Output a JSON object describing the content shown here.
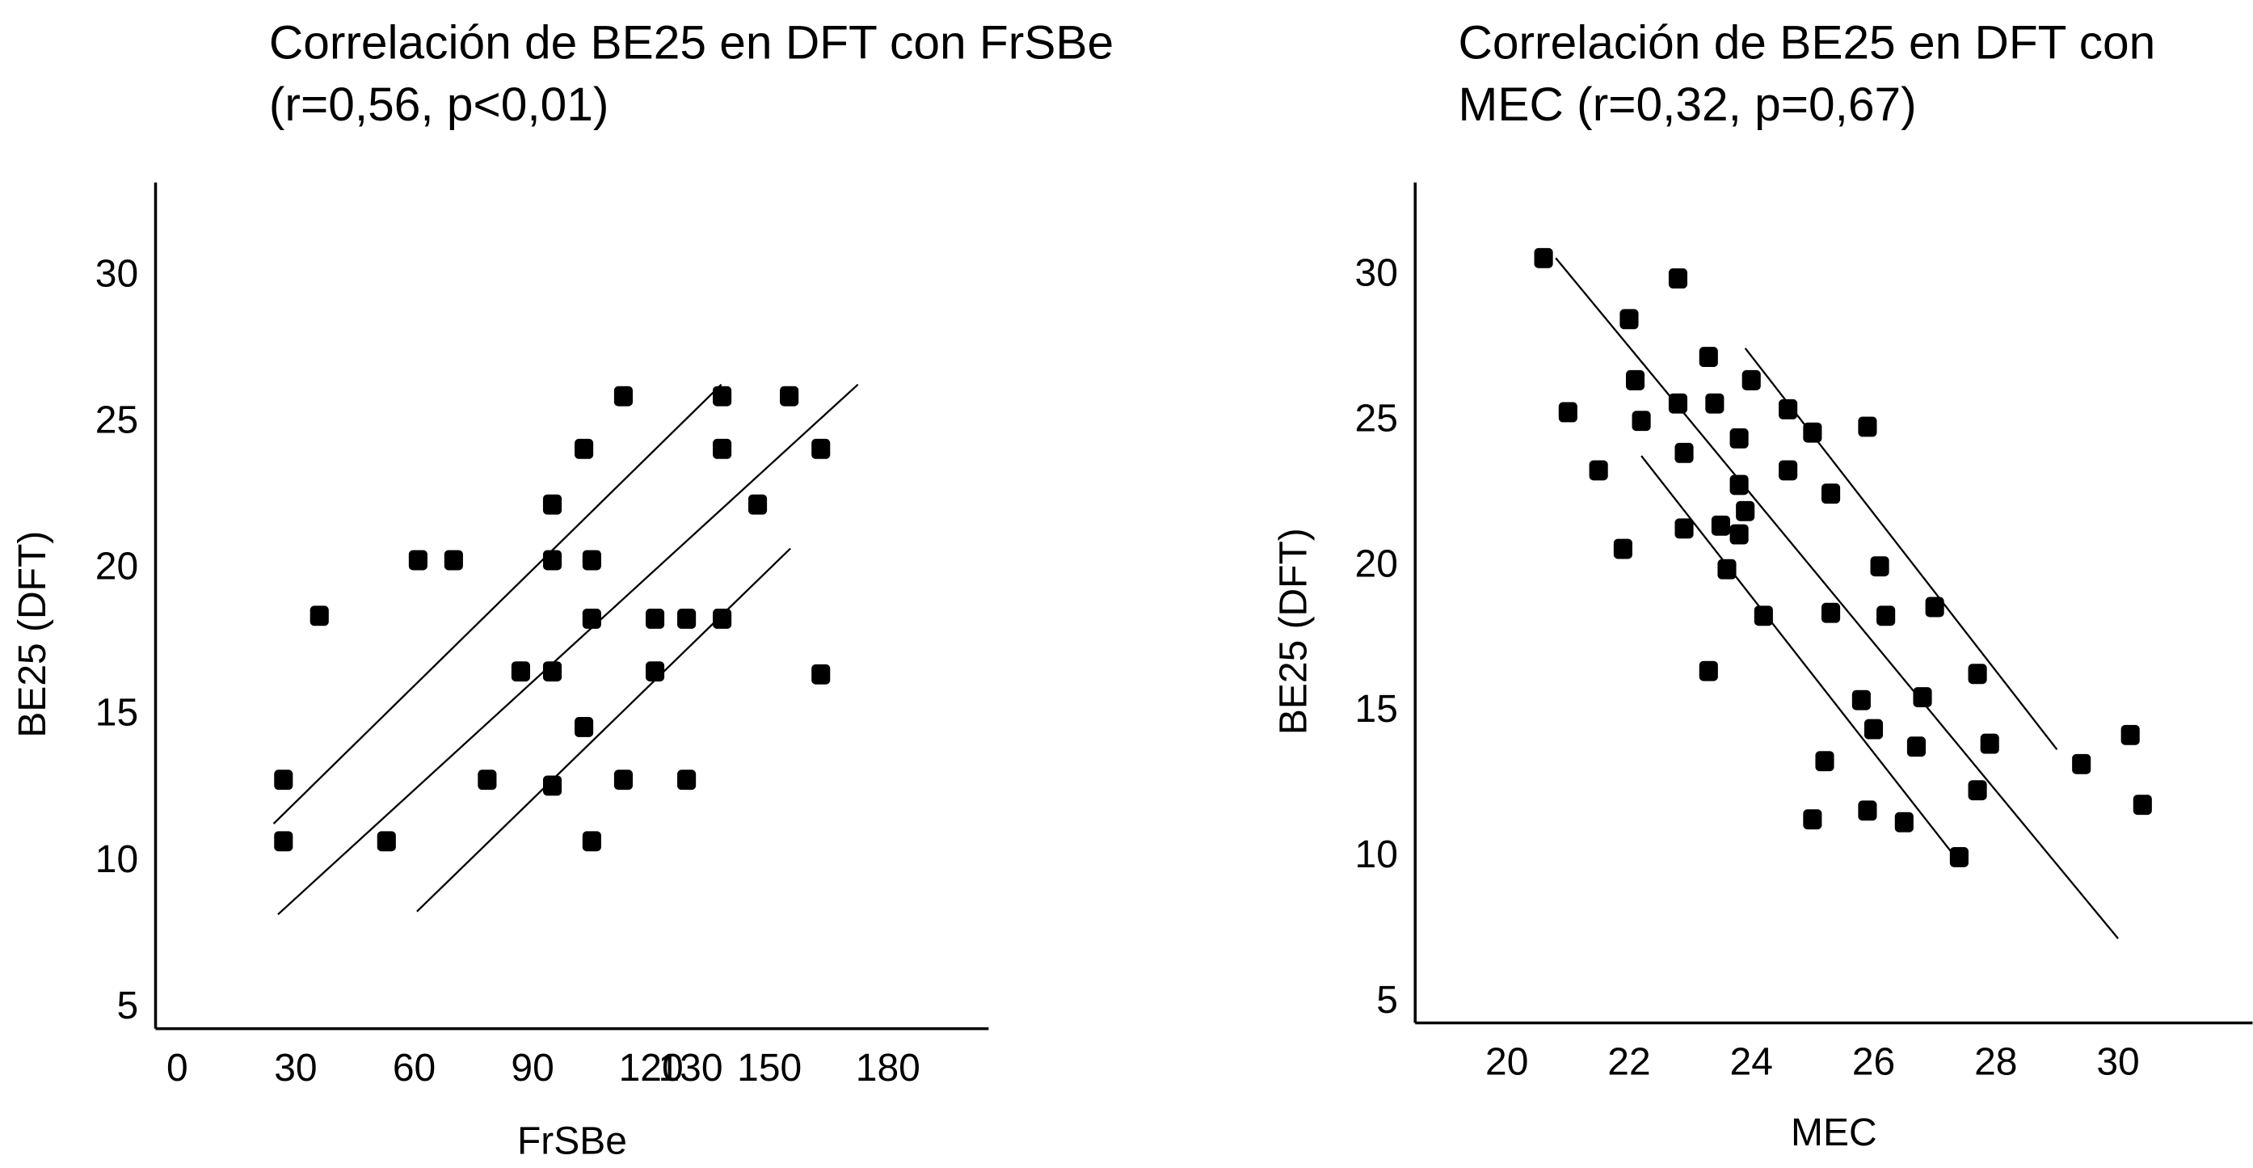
{
  "chart_data": [
    {
      "type": "scatter",
      "title": [
        "Correlación de BE25 en DFT con FrSBe",
        "(r=0,56, p<0,01)"
      ],
      "x_label": "FrSBe",
      "y_label": "BE25 (DFT)",
      "color": "#000000",
      "x": [
        26.9,
        26.9,
        36,
        53,
        61,
        70,
        78.5,
        87,
        95,
        95,
        95,
        95,
        103,
        103,
        105,
        105,
        105,
        113,
        113,
        121,
        121,
        129,
        129,
        138,
        138,
        138,
        147,
        155,
        163,
        163
      ],
      "values": [
        12.8,
        10.7,
        18.4,
        10.7,
        20.3,
        20.3,
        12.8,
        16.5,
        16.5,
        12.6,
        22.2,
        20.3,
        24.1,
        14.6,
        20.3,
        18.3,
        10.7,
        25.9,
        12.8,
        18.3,
        16.5,
        18.3,
        12.8,
        25.9,
        24.1,
        18.3,
        22.2,
        25.9,
        24.1,
        16.4
      ],
      "fit_lines": [
        {
          "x": [
            25.5,
            172.4
          ],
          "y": [
            8.2,
            26.3
          ]
        },
        {
          "x": [
            24.4,
            137.8
          ],
          "y": [
            11.3,
            26.3
          ]
        },
        {
          "x": [
            60.7,
            155.3
          ],
          "y": [
            8.3,
            20.7
          ]
        }
      ],
      "xlim": [
        -5.5,
        205.5
      ],
      "xticks": [
        0,
        30,
        60,
        90,
        120,
        130,
        150,
        180
      ],
      "ylim": [
        4.3,
        33.2
      ],
      "yticks": [
        5,
        10,
        15,
        20,
        25,
        30
      ]
    },
    {
      "type": "scatter",
      "title": [
        "Correlación de BE25 en DFT con",
        "MEC (r=0,32, p=0,67)"
      ],
      "x_label": "MEC",
      "y_label": "BE25 (DFT)",
      "color": "#000000",
      "x": [
        20.6,
        21.0,
        21.5,
        21.9,
        22.0,
        22.1,
        22.2,
        22.8,
        22.8,
        22.9,
        22.9,
        23.3,
        23.3,
        23.4,
        23.5,
        23.6,
        23.8,
        23.8,
        23.8,
        23.9,
        24.0,
        24.2,
        24.6,
        24.6,
        25.0,
        25.3,
        25.3,
        25.2,
        25.0,
        25.8,
        25.9,
        25.9,
        26.0,
        26.1,
        26.2,
        26.5,
        26.7,
        26.8,
        27.0,
        27.4,
        27.7,
        27.7,
        27.9,
        29.4,
        30.2,
        30.4
      ],
      "values": [
        30.6,
        25.3,
        23.3,
        20.6,
        28.5,
        26.4,
        25.0,
        29.9,
        25.6,
        23.9,
        21.3,
        27.2,
        16.4,
        25.6,
        21.4,
        19.9,
        24.4,
        22.8,
        21.1,
        21.9,
        26.4,
        18.3,
        23.3,
        25.4,
        24.6,
        22.5,
        18.4,
        13.3,
        11.3,
        15.4,
        11.6,
        24.8,
        14.4,
        20.0,
        18.3,
        11.2,
        13.8,
        15.5,
        18.6,
        10.0,
        12.3,
        16.3,
        13.9,
        13.2,
        14.2,
        11.8
      ],
      "fit_lines": [
        {
          "x": [
            20.8,
            30.0
          ],
          "y": [
            30.6,
            7.2
          ]
        },
        {
          "x": [
            23.9,
            29.0
          ],
          "y": [
            27.5,
            13.7
          ]
        },
        {
          "x": [
            22.2,
            27.3
          ],
          "y": [
            23.8,
            10.1
          ]
        }
      ],
      "xlim": [
        18.5,
        32.2
      ],
      "xticks": [
        20,
        22,
        24,
        26,
        28,
        30
      ],
      "ylim": [
        4.3,
        33.2
      ],
      "yticks": [
        5,
        10,
        15,
        20,
        25,
        30
      ]
    }
  ]
}
